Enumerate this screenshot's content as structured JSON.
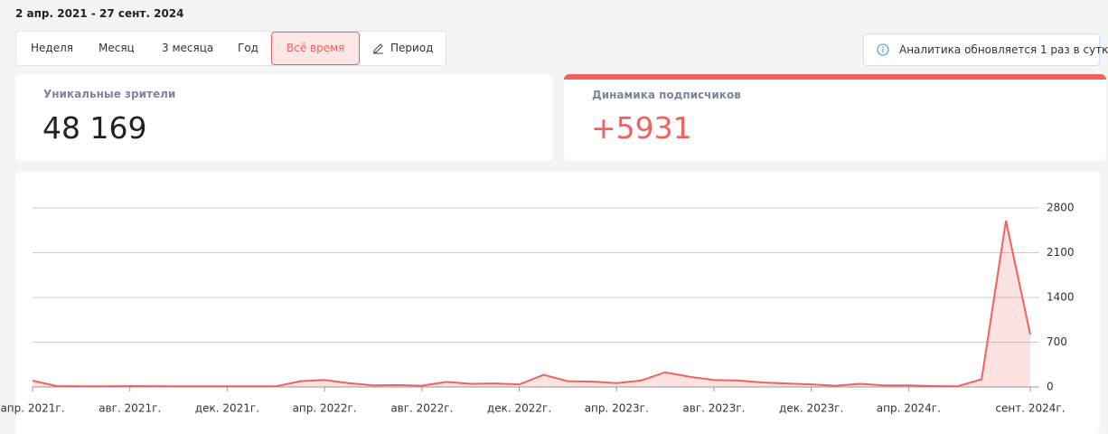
{
  "header": {
    "date_range": "2 апр. 2021 - 27 сент. 2024"
  },
  "tabs": [
    "Неделя",
    "Месяц",
    "3 месяца",
    "Год",
    "Всё время",
    "Период"
  ],
  "active_tab": 4,
  "info": {
    "text": "Аналитика обновляется 1 раз в сутк"
  },
  "cards": [
    {
      "label": "Уникальные зрители",
      "value": "48 169"
    },
    {
      "label": "Динамика подписчиков",
      "value": "+5931"
    }
  ],
  "chart_data": {
    "type": "area",
    "categories": [
      "апр. 2021г.",
      null,
      null,
      null,
      "авг. 2021г.",
      null,
      null,
      null,
      "дек. 2021г.",
      null,
      null,
      null,
      "апр. 2022г.",
      null,
      null,
      null,
      "авг. 2022г.",
      null,
      null,
      null,
      "дек. 2022г.",
      null,
      null,
      null,
      "апр. 2023г.",
      null,
      null,
      null,
      "авг. 2023г.",
      null,
      null,
      null,
      "дек. 2023г.",
      null,
      null,
      null,
      "апр. 2024г.",
      null,
      null,
      null,
      null,
      "сент. 2024г."
    ],
    "values": [
      100,
      15,
      10,
      10,
      15,
      12,
      10,
      10,
      10,
      10,
      10,
      90,
      110,
      60,
      25,
      30,
      20,
      80,
      50,
      55,
      40,
      190,
      90,
      85,
      60,
      100,
      230,
      160,
      110,
      100,
      70,
      55,
      40,
      20,
      50,
      25,
      25,
      15,
      10,
      120,
      2600,
      820
    ],
    "color": "#f0625d",
    "ylim": [
      0,
      2800
    ],
    "yticks": [
      0,
      700,
      1400,
      2100,
      2800
    ],
    "grid": true
  }
}
